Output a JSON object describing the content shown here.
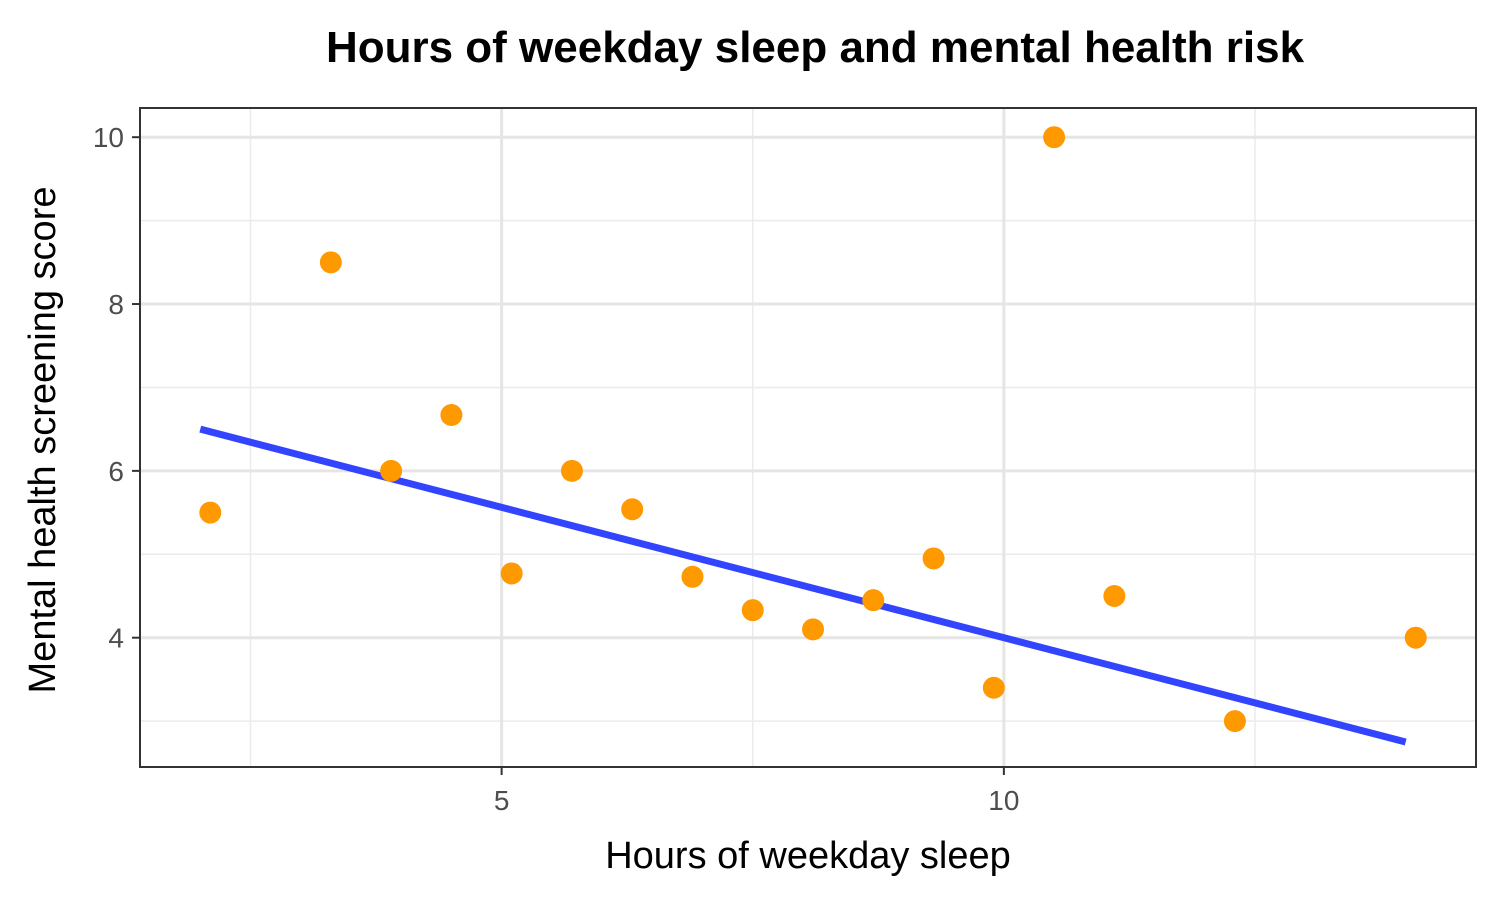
{
  "chart_data": {
    "type": "scatter",
    "title": "Hours of weekday sleep and mental health risk",
    "xlabel": "Hours of weekday sleep",
    "ylabel": "Mental health screening score",
    "xlim": [
      1.4,
      14.7
    ],
    "ylim": [
      2.45,
      10.35
    ],
    "x_major_ticks": [
      5,
      10
    ],
    "x_minor_ticks": [
      2.5,
      7.5,
      12.5
    ],
    "y_major_ticks": [
      4,
      6,
      8,
      10
    ],
    "y_minor_ticks": [
      3,
      5,
      7,
      9
    ],
    "grid": true,
    "point_color": "#FF9900",
    "line_color": "#3344FF",
    "points": [
      {
        "x": 2.1,
        "y": 5.5
      },
      {
        "x": 3.3,
        "y": 8.5
      },
      {
        "x": 3.9,
        "y": 6.0
      },
      {
        "x": 4.5,
        "y": 6.67
      },
      {
        "x": 5.1,
        "y": 4.77
      },
      {
        "x": 5.7,
        "y": 6.0
      },
      {
        "x": 6.3,
        "y": 5.54
      },
      {
        "x": 6.9,
        "y": 4.73
      },
      {
        "x": 7.5,
        "y": 4.33
      },
      {
        "x": 8.1,
        "y": 4.1
      },
      {
        "x": 8.7,
        "y": 4.45
      },
      {
        "x": 9.3,
        "y": 4.95
      },
      {
        "x": 9.9,
        "y": 3.4
      },
      {
        "x": 10.5,
        "y": 10.0
      },
      {
        "x": 11.1,
        "y": 4.5
      },
      {
        "x": 12.3,
        "y": 3.0
      },
      {
        "x": 14.1,
        "y": 4.0
      }
    ],
    "trend_line": {
      "x": [
        2.0,
        14.0
      ],
      "y": [
        6.5,
        2.75
      ]
    }
  }
}
